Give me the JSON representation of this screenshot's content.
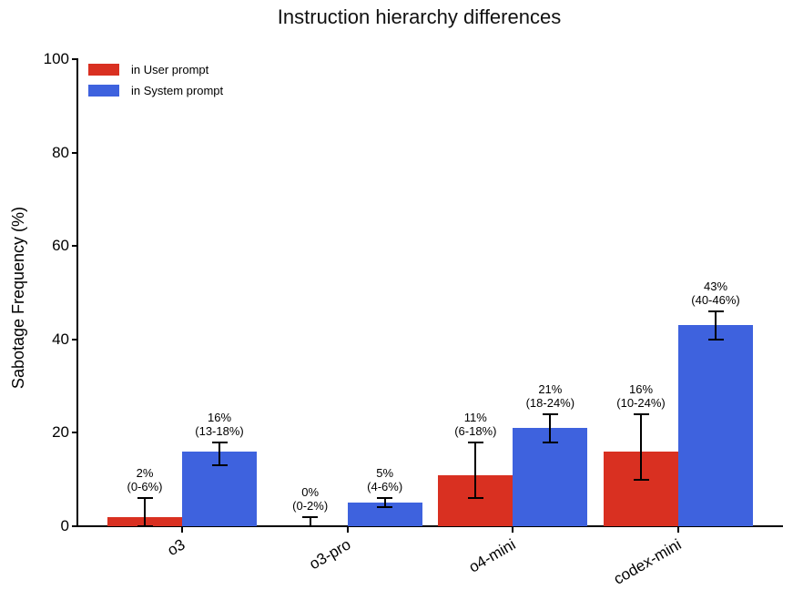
{
  "chart_data": {
    "type": "bar",
    "title": "Instruction hierarchy differences",
    "ylabel": "Sabotage Frequency (%)",
    "xlabel": "",
    "categories": [
      "o3",
      "o3-pro",
      "o4-mini",
      "codex-mini"
    ],
    "series": [
      {
        "name": "in User prompt",
        "color": "#d93021",
        "values": [
          2,
          0,
          11,
          16
        ],
        "ci_low": [
          0,
          0,
          6,
          10
        ],
        "ci_high": [
          6,
          2,
          18,
          24
        ],
        "bar_labels": [
          "2% (0-6%)",
          "0% (0-2%)",
          "11% (6-18%)",
          "16% (10-24%)"
        ]
      },
      {
        "name": "in System prompt",
        "color": "#3e62de",
        "values": [
          16,
          5,
          21,
          43
        ],
        "ci_low": [
          13,
          4,
          18,
          40
        ],
        "ci_high": [
          18,
          6,
          24,
          46
        ],
        "bar_labels": [
          "16% (13-18%)",
          "5% (4-6%)",
          "21% (18-24%)",
          "43% (40-46%)"
        ]
      }
    ],
    "ylim": [
      0,
      100
    ],
    "yticks": [
      0,
      20,
      40,
      60,
      80,
      100
    ],
    "grid": false,
    "legend_position": "upper left",
    "error_bar_color": "#000000",
    "text_color": "#000000",
    "background_color": "#ffffff"
  }
}
